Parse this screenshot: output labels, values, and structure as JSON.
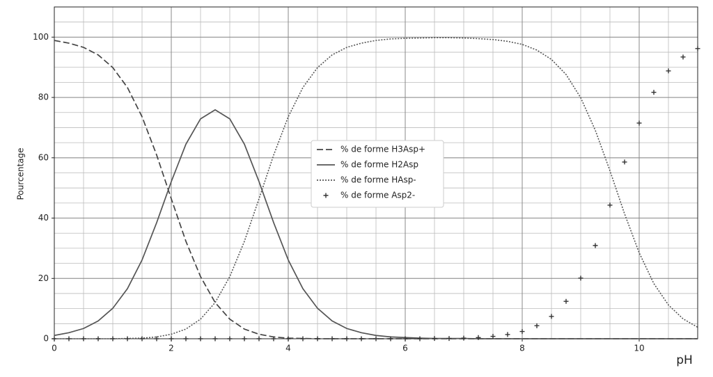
{
  "chart_data": {
    "type": "line",
    "xlabel": "pH",
    "ylabel": "Pourcentage",
    "xlim": [
      0,
      11
    ],
    "ylim": [
      0,
      110
    ],
    "xticks": [
      0,
      2,
      4,
      6,
      8,
      10
    ],
    "yticks": [
      0,
      20,
      40,
      60,
      80,
      100
    ],
    "xminor": [
      0,
      0.5,
      1,
      1.5,
      2,
      2.5,
      3,
      3.5,
      4,
      4.5,
      5,
      5.5,
      6,
      6.5,
      7,
      7.5,
      8,
      8.5,
      9,
      9.5,
      10,
      10.5,
      11
    ],
    "yminor": [
      0,
      5,
      10,
      15,
      20,
      25,
      30,
      35,
      40,
      45,
      50,
      55,
      60,
      65,
      70,
      75,
      80,
      85,
      90,
      95,
      100,
      105,
      110
    ],
    "grid": true,
    "legend": "center",
    "x": [
      0,
      0.25,
      0.5,
      0.75,
      1,
      1.25,
      1.5,
      1.75,
      2,
      2.25,
      2.5,
      2.75,
      3,
      3.25,
      3.5,
      3.75,
      4,
      4.25,
      4.5,
      4.75,
      5,
      5.25,
      5.5,
      5.75,
      6,
      6.25,
      6.5,
      6.75,
      7,
      7.25,
      7.5,
      7.75,
      8,
      8.25,
      8.5,
      8.75,
      9,
      9.25,
      9.5,
      9.75,
      10,
      10.25,
      10.5,
      10.75,
      11
    ],
    "series": [
      {
        "name": "% de forme H3Asp+",
        "color": "#444444",
        "style": "dashed",
        "values": [
          98.9,
          98.0,
          96.6,
          94.1,
          89.9,
          83.3,
          73.6,
          60.9,
          46.4,
          32.3,
          20.6,
          12.0,
          6.5,
          3.2,
          1.5,
          0.6,
          0.2,
          0.1,
          0,
          0,
          0,
          0,
          0,
          0,
          0,
          0,
          0,
          0,
          0,
          0,
          0,
          0,
          0,
          0,
          0,
          0,
          0,
          0,
          0,
          0,
          0,
          0,
          0,
          0,
          0
        ]
      },
      {
        "name": "% de forme H2Asp",
        "color": "#555555",
        "style": "solid",
        "values": [
          1.1,
          2.0,
          3.4,
          5.9,
          10.1,
          16.6,
          26.1,
          38.5,
          52.1,
          64.5,
          72.9,
          75.9,
          72.9,
          64.5,
          52.1,
          38.5,
          26.1,
          16.6,
          10.1,
          5.9,
          3.4,
          2.0,
          1.1,
          0.6,
          0.4,
          0.2,
          0.1,
          0.1,
          0.1,
          0,
          0,
          0,
          0,
          0,
          0,
          0,
          0,
          0,
          0,
          0,
          0,
          0,
          0,
          0,
          0
        ]
      },
      {
        "name": "% de forme HAsp-",
        "color": "#555555",
        "style": "dotted",
        "values": [
          0,
          0,
          0,
          0,
          0,
          0.1,
          0.2,
          0.6,
          1.5,
          3.2,
          6.5,
          12.0,
          20.6,
          32.3,
          46.4,
          60.9,
          73.6,
          83.3,
          89.9,
          94.1,
          96.6,
          98.0,
          98.9,
          99.4,
          99.6,
          99.7,
          99.8,
          99.8,
          99.7,
          99.5,
          99.2,
          98.6,
          97.6,
          95.7,
          92.6,
          87.6,
          79.9,
          69.1,
          55.7,
          41.4,
          28.5,
          18.3,
          11.2,
          6.6,
          3.8
        ]
      },
      {
        "name": "% de forme Asp2-",
        "color": "#333333",
        "style": "markers",
        "values": [
          0,
          0,
          0,
          0,
          0,
          0,
          0,
          0,
          0,
          0,
          0,
          0,
          0,
          0,
          0,
          0,
          0,
          0,
          0,
          0,
          0,
          0,
          0,
          0,
          0,
          0,
          0.1,
          0.1,
          0.2,
          0.4,
          0.8,
          1.4,
          2.4,
          4.3,
          7.4,
          12.4,
          20.1,
          30.9,
          44.3,
          58.6,
          71.5,
          81.7,
          88.8,
          93.4,
          96.2
        ]
      }
    ]
  }
}
